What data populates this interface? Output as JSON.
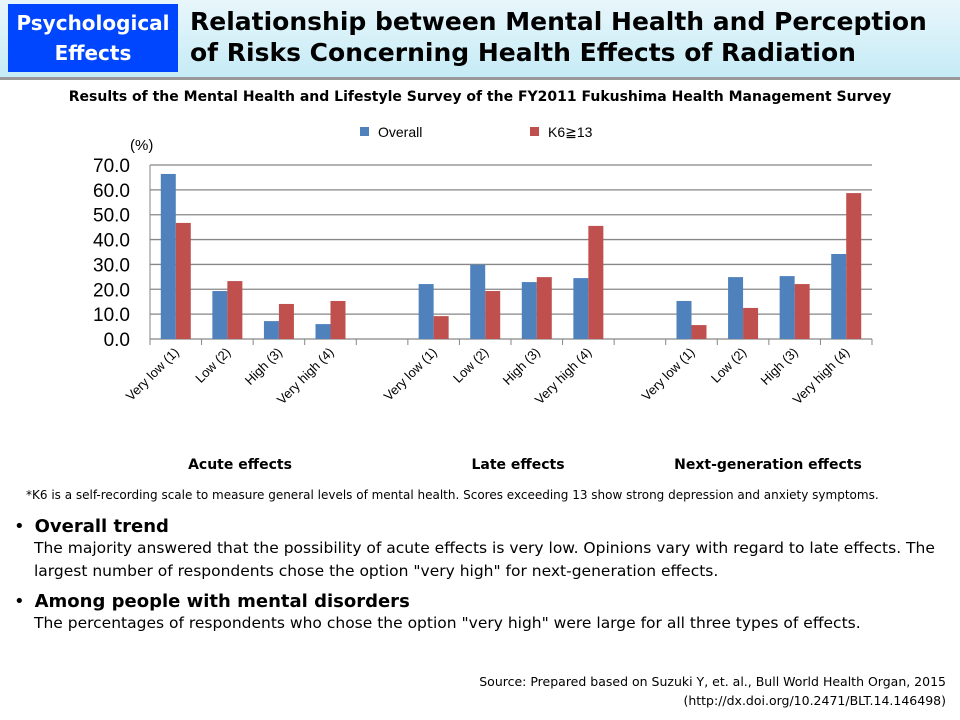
{
  "header": {
    "badge": "Psychological Effects",
    "title": "Relationship between Mental Health and Perception of Risks Concerning Health Effects of Radiation"
  },
  "subtitle": "Results of the Mental Health and Lifestyle Survey of the FY2011 Fukushima Health Management Survey",
  "chart_data": {
    "type": "bar",
    "ylabel": "(%)",
    "ylim": [
      0,
      70
    ],
    "yticks": [
      "0.0",
      "10.0",
      "20.0",
      "30.0",
      "40.0",
      "50.0",
      "60.0",
      "70.0"
    ],
    "grid": true,
    "legend_placement": "top",
    "categories": [
      "Very low (1)",
      "Low (2)",
      "High (3)",
      "Very high (4)",
      "",
      "Very low (1)",
      "Low (2)",
      "High (3)",
      "Very high (4)",
      "",
      "Very low (1)",
      "Low (2)",
      "High (3)",
      "Very high (4)"
    ],
    "groups": [
      "Acute effects",
      "Late effects",
      "Next-generation effects"
    ],
    "series": [
      {
        "name": "Overall",
        "color": "#4f81bd",
        "values": [
          66.4,
          19.3,
          7.2,
          6.0,
          null,
          22.1,
          29.9,
          22.9,
          24.5,
          null,
          15.3,
          24.9,
          25.3,
          34.2
        ]
      },
      {
        "name": "K6≧13",
        "color": "#c0504d",
        "values": [
          46.7,
          23.3,
          14.1,
          15.3,
          null,
          9.2,
          19.3,
          24.9,
          45.5,
          null,
          5.6,
          12.5,
          22.1,
          58.7
        ]
      }
    ]
  },
  "note": "*K6 is a self-recording scale to measure general levels of mental health. Scores exceeding 13 show strong depression and anxiety symptoms.",
  "bullets": [
    {
      "heading": "Overall trend",
      "text": "The majority answered that the possibility of acute effects is very low. Opinions vary with regard to late effects. The largest number of respondents chose the option \"very high\" for next-generation effects."
    },
    {
      "heading": "Among people with mental disorders",
      "text": "The percentages of respondents who chose the option \"very high\" were large for all three types of effects."
    }
  ],
  "source": {
    "line1": "Source: Prepared based on Suzuki Y, et. al., Bull World Health Organ, 2015",
    "line2": "(http://dx.doi.org/10.2471/BLT.14.146498)"
  }
}
